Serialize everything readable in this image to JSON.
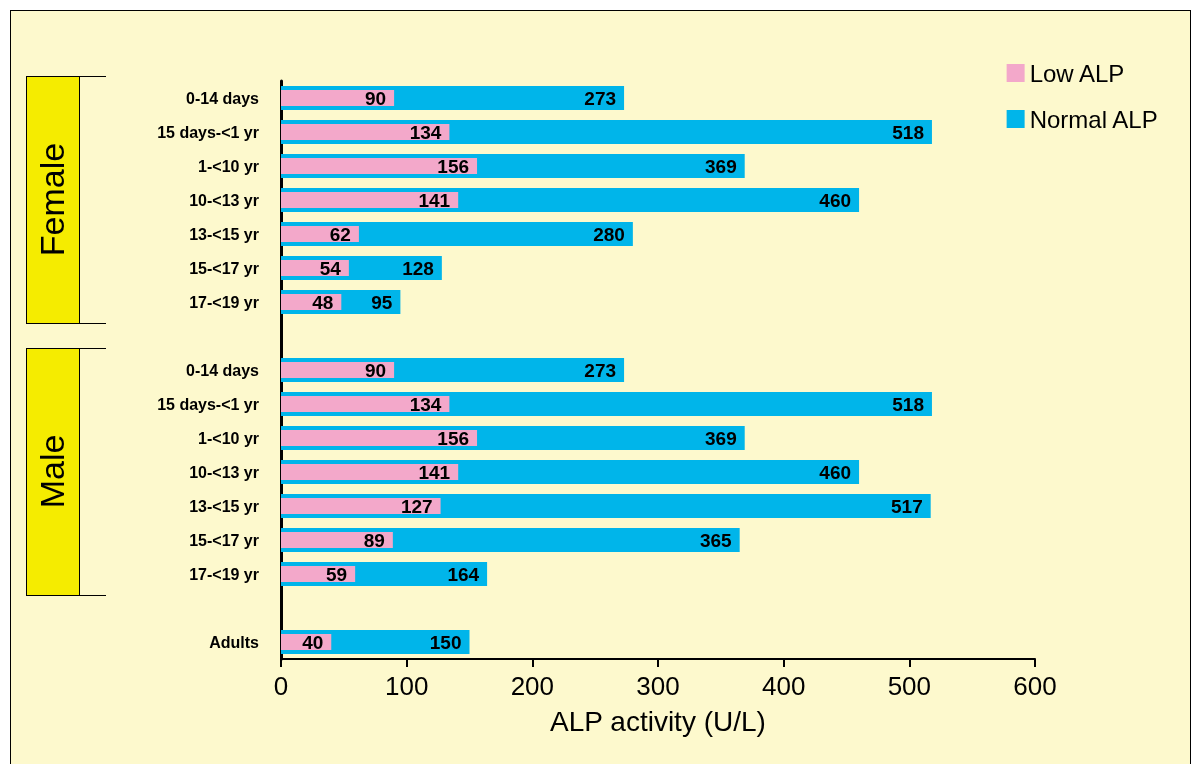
{
  "chart_data": {
    "type": "bar",
    "orientation": "horizontal",
    "xlabel": "ALP activity (U/L)",
    "categories": [
      "0-14 days",
      "15 days-<1 yr",
      "1-<10 yr",
      "10-<13 yr",
      "13-<15 yr",
      "15-<17 yr",
      "17-<19 yr",
      null,
      "0-14 days",
      "15 days-<1 yr",
      "1-<10 yr",
      "10-<13 yr",
      "13-<15 yr",
      "15-<17 yr",
      "17-<19 yr",
      null,
      "Adults"
    ],
    "series": [
      {
        "name": "Low ALP",
        "color": "#f3a8ca",
        "values": [
          90,
          134,
          156,
          141,
          62,
          54,
          48,
          null,
          90,
          134,
          156,
          141,
          127,
          89,
          59,
          null,
          40
        ]
      },
      {
        "name": "Normal ALP",
        "color": "#00b5ea",
        "values": [
          273,
          518,
          369,
          460,
          280,
          128,
          95,
          null,
          273,
          518,
          369,
          460,
          517,
          365,
          164,
          null,
          150
        ]
      }
    ],
    "xlim": [
      0,
      600
    ],
    "xticks": [
      0,
      100,
      200,
      300,
      400,
      500,
      600
    ],
    "grid": false,
    "legend": "top right",
    "data_labels": true,
    "annotations": [
      "Female",
      "Male"
    ]
  }
}
